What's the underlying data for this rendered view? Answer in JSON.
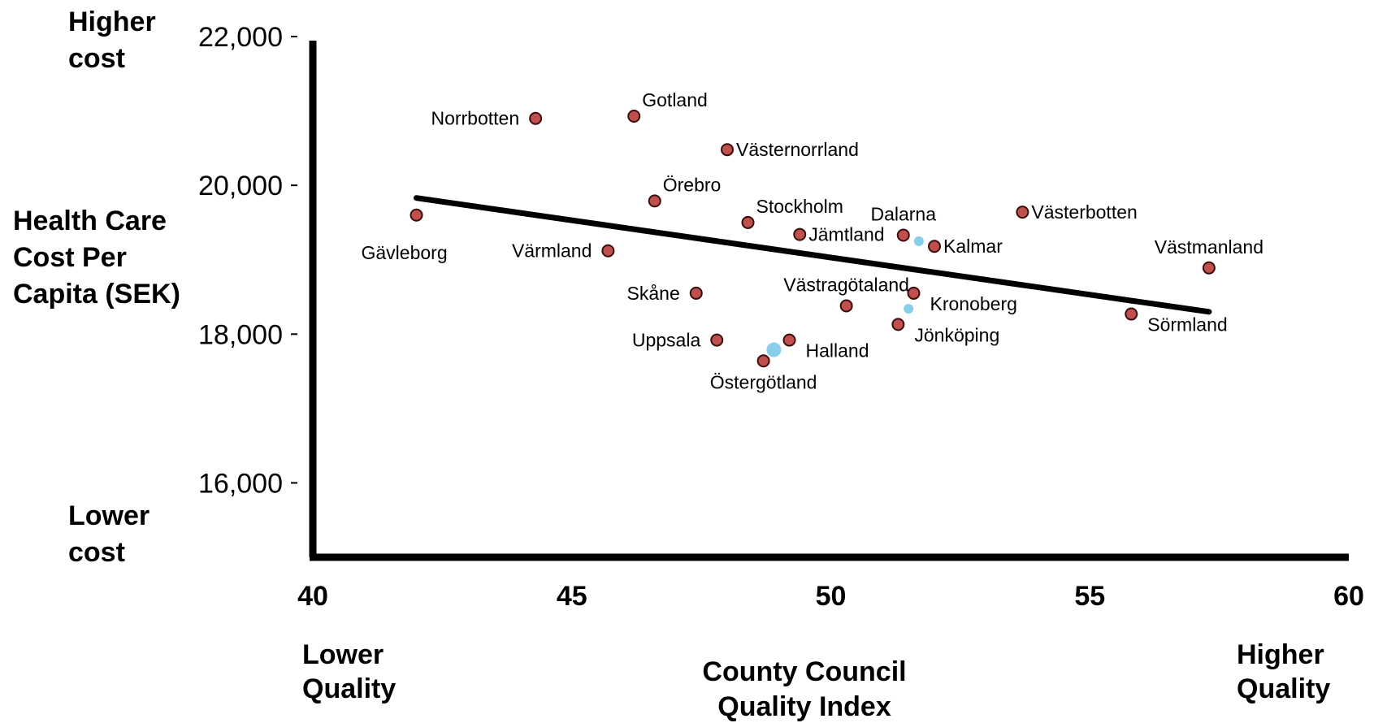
{
  "chart_data": {
    "type": "scatter",
    "title": "",
    "xlabel": [
      "County Council",
      "Quality Index"
    ],
    "ylabel": [
      "Health Care",
      "Cost Per",
      "Capita (SEK)"
    ],
    "x_low_label": [
      "Lower",
      "Quality"
    ],
    "x_high_label": [
      "Higher",
      "Quality"
    ],
    "y_low_label": [
      "Lower",
      "cost"
    ],
    "y_high_label": [
      "Higher",
      "cost"
    ],
    "xlim": [
      40,
      60
    ],
    "ylim": [
      15000,
      22000
    ],
    "x_ticks": [
      40,
      45,
      50,
      55,
      60
    ],
    "x_tick_labels": [
      "40",
      "45",
      "50",
      "55",
      "60"
    ],
    "y_ticks": [
      16000,
      18000,
      20000,
      22000
    ],
    "y_tick_labels": [
      "16,000",
      "18,000",
      "20,000",
      "22,000"
    ],
    "grid": false,
    "point_color": "#c0504d",
    "highlight_color": "#87ceeb",
    "trendline": {
      "x": [
        42,
        57.3
      ],
      "y": [
        19830,
        18300
      ]
    },
    "points": [
      {
        "label": "Norrbotten",
        "x": 44.3,
        "y": 20900,
        "label_pos": "left"
      },
      {
        "label": "Gotland",
        "x": 46.2,
        "y": 20930,
        "label_pos": "above-right"
      },
      {
        "label": "Västernorrland",
        "x": 48.0,
        "y": 20480,
        "label_pos": "right"
      },
      {
        "label": "Örebro",
        "x": 46.6,
        "y": 19790,
        "label_pos": "above-right"
      },
      {
        "label": "Gävleborg",
        "x": 42.0,
        "y": 19600,
        "label_pos": "below-left"
      },
      {
        "label": "Stockholm",
        "x": 48.4,
        "y": 19500,
        "label_pos": "above-right"
      },
      {
        "label": "Jämtland",
        "x": 49.4,
        "y": 19340,
        "label_pos": "right"
      },
      {
        "label": "Värmland",
        "x": 45.7,
        "y": 19120,
        "label_pos": "left"
      },
      {
        "label": "Dalarna",
        "x": 51.4,
        "y": 19330,
        "label_pos": "above"
      },
      {
        "label": "Kalmar",
        "x": 52.0,
        "y": 19180,
        "label_pos": "right"
      },
      {
        "label": "Västerbotten",
        "x": 53.7,
        "y": 19640,
        "label_pos": "right"
      },
      {
        "label": "Västmanland",
        "x": 57.3,
        "y": 18890,
        "label_pos": "above"
      },
      {
        "label": "Skåne",
        "x": 47.4,
        "y": 18550,
        "label_pos": "left"
      },
      {
        "label": "Västragötaland",
        "x": 50.3,
        "y": 18380,
        "label_pos": "above"
      },
      {
        "label": "Kronoberg",
        "x": 51.6,
        "y": 18550,
        "label_pos": "below-right"
      },
      {
        "label": "Sörmland",
        "x": 55.8,
        "y": 18270,
        "label_pos": "below-right"
      },
      {
        "label": "Jönköping",
        "x": 51.3,
        "y": 18130,
        "label_pos": "below-right"
      },
      {
        "label": "Uppsala",
        "x": 47.8,
        "y": 17920,
        "label_pos": "left"
      },
      {
        "label": "Halland",
        "x": 49.2,
        "y": 17920,
        "label_pos": "below-right"
      },
      {
        "label": "Östergötland",
        "x": 48.7,
        "y": 17640,
        "label_pos": "below"
      }
    ],
    "highlight_points": [
      {
        "x": 51.7,
        "y": 19250
      },
      {
        "x": 51.5,
        "y": 18340
      },
      {
        "x": 48.9,
        "y": 17790
      }
    ]
  }
}
